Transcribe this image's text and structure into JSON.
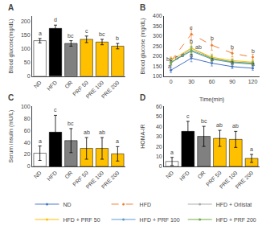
{
  "chart_data": [
    {
      "type": "bar",
      "title": "A",
      "categories": [
        "ND",
        "HFD",
        "OR",
        "PRF 50",
        "PRE 100",
        "PRE 200"
      ],
      "values": [
        130,
        175,
        120,
        135,
        125,
        110
      ],
      "errors": [
        8,
        12,
        10,
        12,
        10,
        10
      ],
      "colors": [
        "#ffffff",
        "#000000",
        "#808080",
        "#FFC000",
        "#FFC000",
        "#FFC000"
      ],
      "ylabel": "Blood glucose(mg/dL)",
      "ylim": [
        0,
        220
      ],
      "yticks": [
        0,
        50,
        100,
        150,
        200
      ],
      "grid": false,
      "annotations": [
        {
          "x": "ND",
          "text": "a"
        },
        {
          "x": "HFD",
          "text": "d"
        },
        {
          "x": "OR",
          "text": "bc"
        },
        {
          "x": "PRF 50",
          "text": "c"
        },
        {
          "x": "PRE 100",
          "text": "bc"
        },
        {
          "x": "PRE 200",
          "text": "b"
        }
      ]
    },
    {
      "type": "line",
      "title": "B",
      "xlabel": "Time(min)",
      "ylabel": "Blood glucose (mg/dL)",
      "x": [
        0,
        30,
        60,
        90,
        120
      ],
      "series": [
        {
          "name": "ND",
          "color": "#4472C4",
          "values": [
            130,
            190,
            165,
            148,
            140
          ],
          "errors": [
            12,
            18,
            14,
            10,
            10
          ],
          "marker": "circle",
          "line_style": "solid"
        },
        {
          "name": "HFD",
          "color": "#ED7D31",
          "values": [
            175,
            310,
            255,
            215,
            195
          ],
          "errors": [
            20,
            30,
            25,
            18,
            15
          ],
          "marker": "circle",
          "line_style": "dashed"
        },
        {
          "name": "HFD + Orlistat",
          "color": "#A9A9A9",
          "values": [
            165,
            240,
            190,
            170,
            162
          ],
          "errors": [
            15,
            25,
            18,
            14,
            12
          ],
          "marker": "circle",
          "line_style": "solid"
        },
        {
          "name": "HFD + PRF 50",
          "color": "#FFC000",
          "values": [
            180,
            240,
            195,
            178,
            170
          ],
          "errors": [
            15,
            22,
            16,
            13,
            12
          ],
          "marker": "circle",
          "line_style": "solid"
        },
        {
          "name": "HFD + PRF 100",
          "color": "#5B9BD5",
          "values": [
            170,
            225,
            185,
            168,
            160
          ],
          "errors": [
            12,
            20,
            15,
            12,
            11
          ],
          "marker": "circle",
          "line_style": "solid"
        },
        {
          "name": "HFD + PRF 200",
          "color": "#70AD47",
          "values": [
            168,
            230,
            188,
            172,
            165
          ],
          "errors": [
            12,
            20,
            15,
            12,
            10
          ],
          "marker": "circle",
          "line_style": "solid"
        }
      ],
      "xlim": [
        -10,
        130
      ],
      "xticks": [
        0,
        30,
        60,
        90,
        120
      ],
      "ylim": [
        100,
        400
      ],
      "yticks": [
        100,
        150,
        200,
        250,
        300,
        350,
        400
      ],
      "grid": false,
      "legend": "bottom",
      "annotations": [
        {
          "x": -2,
          "y": 127,
          "text": "a"
        },
        {
          "x": -2,
          "y": 162,
          "text": "bc"
        },
        {
          "x": -2,
          "y": 172,
          "text": "b"
        },
        {
          "x": -2,
          "y": 183,
          "text": "d"
        },
        {
          "x": 30,
          "y": 318,
          "text": "c"
        },
        {
          "x": 30,
          "y": 250,
          "text": "b"
        },
        {
          "x": 30,
          "y": 225,
          "text": "ab"
        },
        {
          "x": 30,
          "y": 185,
          "text": "a"
        },
        {
          "x": 60,
          "y": 268,
          "text": "b"
        },
        {
          "x": 60,
          "y": 165,
          "text": "a"
        },
        {
          "x": 90,
          "y": 222,
          "text": "b"
        },
        {
          "x": 90,
          "y": 148,
          "text": "a"
        },
        {
          "x": 120,
          "y": 205,
          "text": "b"
        },
        {
          "x": 120,
          "y": 138,
          "text": "a"
        }
      ]
    },
    {
      "type": "bar",
      "title": "C",
      "categories": [
        "ND",
        "HFD",
        "OR",
        "PRF 50",
        "PRE 100",
        "PRE 200"
      ],
      "values": [
        22,
        57,
        43,
        30,
        30,
        21
      ],
      "errors": [
        12,
        28,
        20,
        18,
        18,
        12
      ],
      "colors": [
        "#ffffff",
        "#000000",
        "#808080",
        "#FFC000",
        "#FFC000",
        "#FFC000"
      ],
      "ylabel": "Serum insulin (mU/L)",
      "ylim": [
        0,
        100
      ],
      "yticks": [
        0,
        20,
        40,
        60,
        80,
        100
      ],
      "grid": false,
      "annotations": [
        {
          "x": "ND",
          "text": "a"
        },
        {
          "x": "HFD",
          "text": "c"
        },
        {
          "x": "OR",
          "text": "bc"
        },
        {
          "x": "PRF 50",
          "text": "ab"
        },
        {
          "x": "PRE 100",
          "text": "ab"
        },
        {
          "x": "PRE 200",
          "text": "a"
        }
      ]
    },
    {
      "type": "bar",
      "title": "D",
      "categories": [
        "ND",
        "HFD",
        "OR",
        "PRF 50",
        "PRE 100",
        "PRE 200"
      ],
      "values": [
        5,
        35,
        30,
        28,
        27,
        8
      ],
      "errors": [
        4,
        10,
        10,
        8,
        8,
        4
      ],
      "colors": [
        "#ffffff",
        "#000000",
        "#808080",
        "#FFC000",
        "#FFC000",
        "#FFC000"
      ],
      "ylabel": "HOMA-IR",
      "ylim": [
        0,
        60
      ],
      "yticks": [
        0,
        10,
        20,
        30,
        40,
        50,
        60
      ],
      "grid": false,
      "annotations": [
        {
          "x": "ND",
          "text": "a"
        },
        {
          "x": "HFD",
          "text": "c"
        },
        {
          "x": "OR",
          "text": "bc"
        },
        {
          "x": "PRF 50",
          "text": "ab"
        },
        {
          "x": "PRE 100",
          "text": "ab"
        },
        {
          "x": "PRE 200",
          "text": "a"
        }
      ]
    }
  ]
}
